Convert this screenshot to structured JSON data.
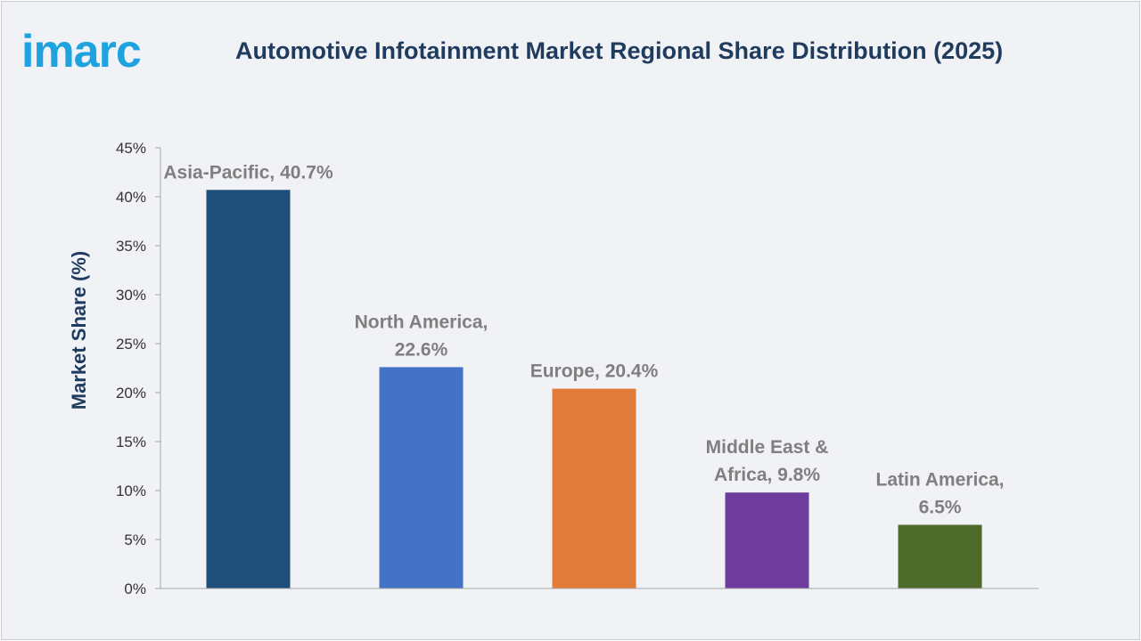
{
  "header": {
    "logo_text": "imarc",
    "title": "Automotive Infotainment Market Regional Share Distribution (2025)"
  },
  "colors": {
    "background": "#f0f2f6",
    "title": "#1f3b5e",
    "logo": "#1fa3e0",
    "data_label": "#7f7f7f",
    "axis": "#a6a6a6"
  },
  "chart_data": {
    "type": "bar",
    "title": "Automotive Infotainment Market Regional Share Distribution (2025)",
    "xlabel": "",
    "ylabel": "Market Share (%)",
    "ylim": [
      0,
      45
    ],
    "yticks": [
      0,
      5,
      10,
      15,
      20,
      25,
      30,
      35,
      40,
      45
    ],
    "ytick_labels": [
      "0%",
      "5%",
      "10%",
      "15%",
      "20%",
      "25%",
      "30%",
      "35%",
      "40%",
      "45%"
    ],
    "grid": false,
    "legend": "none",
    "categories": [
      "Asia-Pacific",
      "North America",
      "Europe",
      "Middle East & Africa",
      "Latin America"
    ],
    "values": [
      40.7,
      22.6,
      20.4,
      9.8,
      6.5
    ],
    "bar_colors": [
      "#1f4e79",
      "#4472c4",
      "#e07b39",
      "#6f3d9e",
      "#4f6b2c"
    ],
    "data_labels": [
      [
        "Asia-Pacific, 40.7%"
      ],
      [
        "North America,",
        "22.6%"
      ],
      [
        "Europe, 20.4%"
      ],
      [
        "Middle East &",
        "Africa, 9.8%"
      ],
      [
        "Latin America,",
        "6.5%"
      ]
    ]
  }
}
